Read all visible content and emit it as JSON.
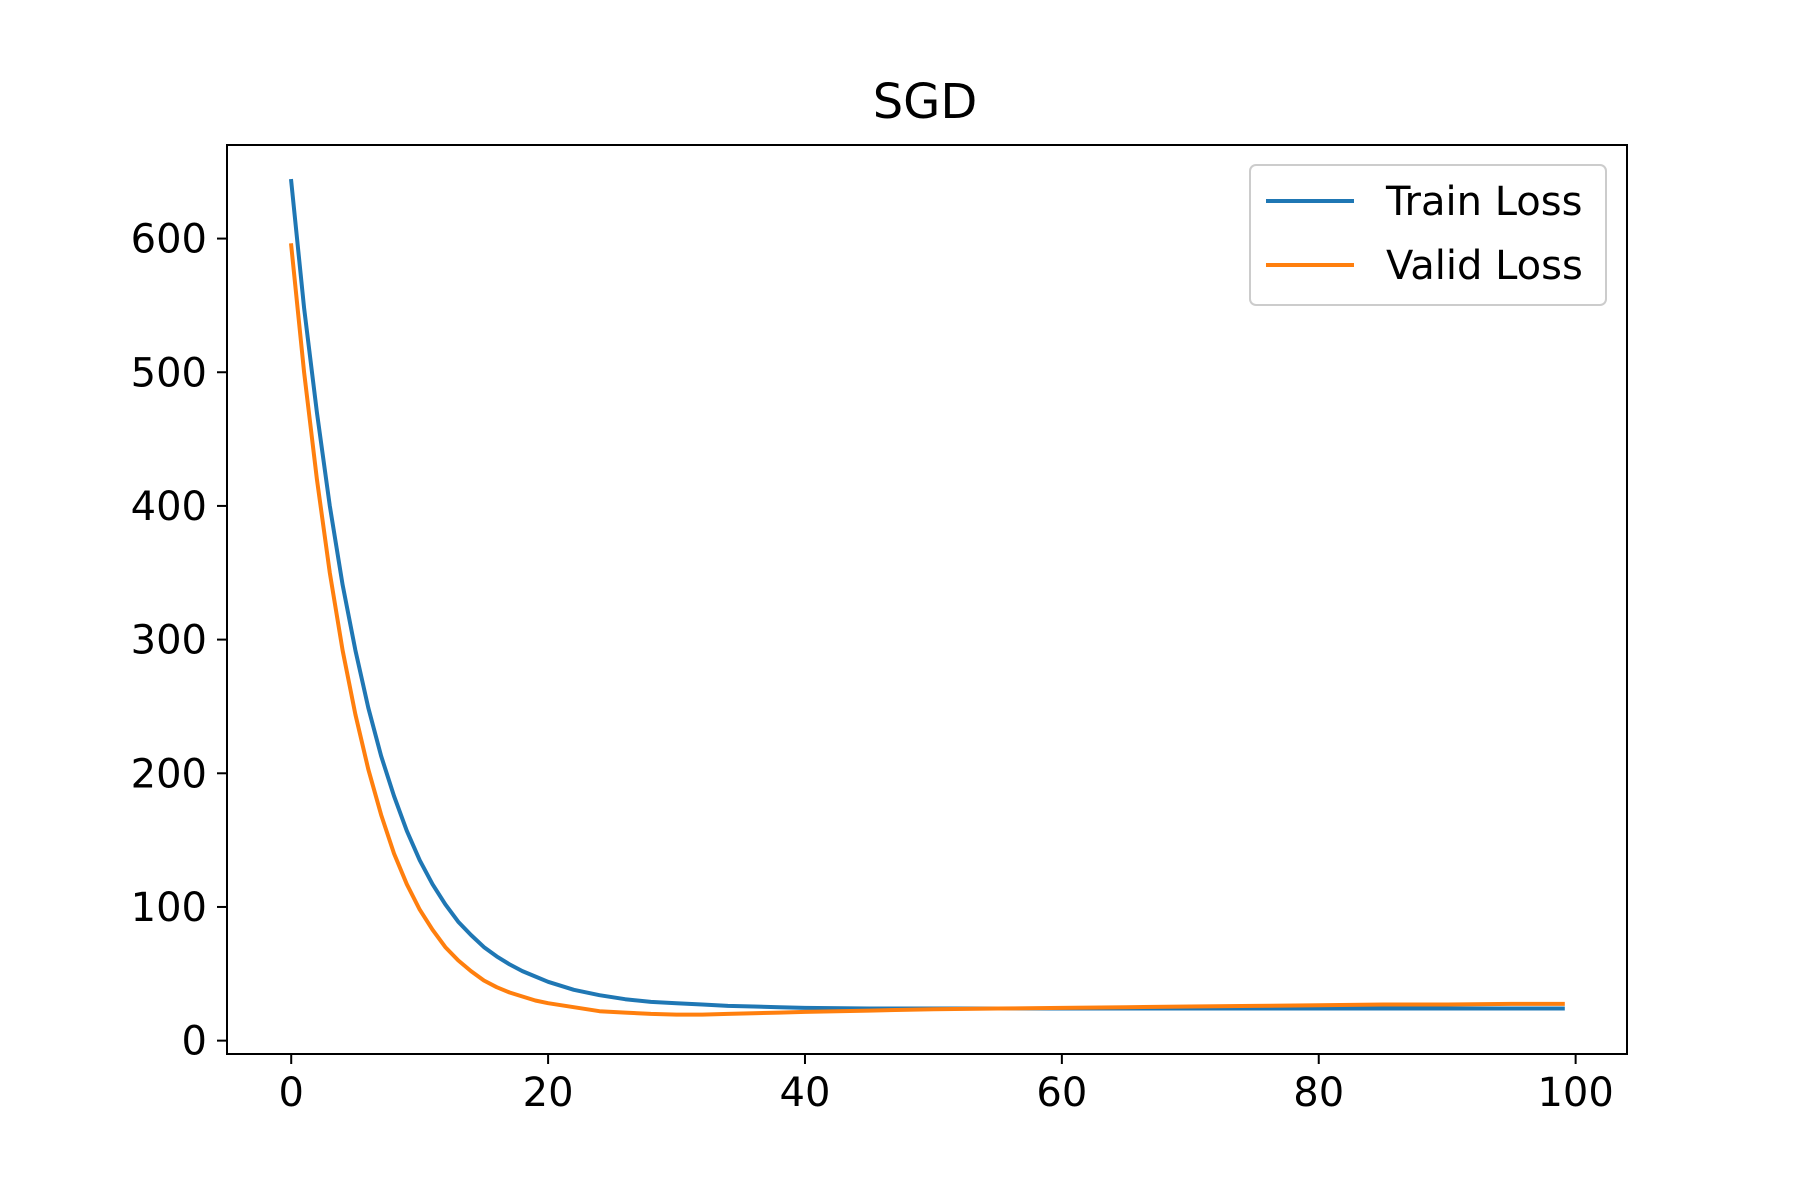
{
  "chart_data": {
    "type": "line",
    "title": "SGD",
    "xlabel": "",
    "ylabel": "",
    "xlim": [
      -5,
      104
    ],
    "ylim": [
      -10,
      670
    ],
    "xticks": [
      0,
      20,
      40,
      60,
      80,
      100
    ],
    "yticks": [
      0,
      100,
      200,
      300,
      400,
      500,
      600
    ],
    "grid": false,
    "legend_position": "top-right",
    "series": [
      {
        "name": "Train Loss",
        "color": "#1f77b4",
        "x": [
          0,
          1,
          2,
          3,
          4,
          5,
          6,
          7,
          8,
          9,
          10,
          11,
          12,
          13,
          14,
          15,
          16,
          17,
          18,
          19,
          20,
          22,
          24,
          26,
          28,
          30,
          32,
          34,
          36,
          38,
          40,
          45,
          50,
          55,
          60,
          65,
          70,
          75,
          80,
          85,
          90,
          95,
          99
        ],
        "values": [
          643,
          548,
          470,
          400,
          341,
          292,
          249,
          213,
          183,
          157,
          135,
          117,
          102,
          89,
          79,
          70,
          63,
          57,
          52,
          48,
          44,
          38,
          34,
          31,
          29,
          28,
          27,
          26,
          25.5,
          25,
          24.5,
          24,
          24,
          24,
          24,
          24,
          24,
          24,
          24,
          24,
          24,
          24,
          24
        ]
      },
      {
        "name": "Valid Loss",
        "color": "#ff7f0e",
        "x": [
          0,
          1,
          2,
          3,
          4,
          5,
          6,
          7,
          8,
          9,
          10,
          11,
          12,
          13,
          14,
          15,
          16,
          17,
          18,
          19,
          20,
          22,
          24,
          26,
          28,
          30,
          32,
          34,
          36,
          38,
          40,
          45,
          50,
          55,
          60,
          65,
          70,
          75,
          80,
          85,
          90,
          95,
          99
        ],
        "values": [
          595,
          500,
          420,
          350,
          292,
          244,
          203,
          169,
          140,
          117,
          98,
          83,
          70,
          60,
          52,
          45,
          40,
          36,
          33,
          30,
          28,
          25,
          22,
          21,
          20,
          19.5,
          19.5,
          20,
          20.5,
          21,
          21.5,
          22.5,
          23.5,
          24,
          24.5,
          25,
          25.5,
          26,
          26.5,
          27,
          27,
          27.5,
          27.5
        ]
      }
    ]
  }
}
